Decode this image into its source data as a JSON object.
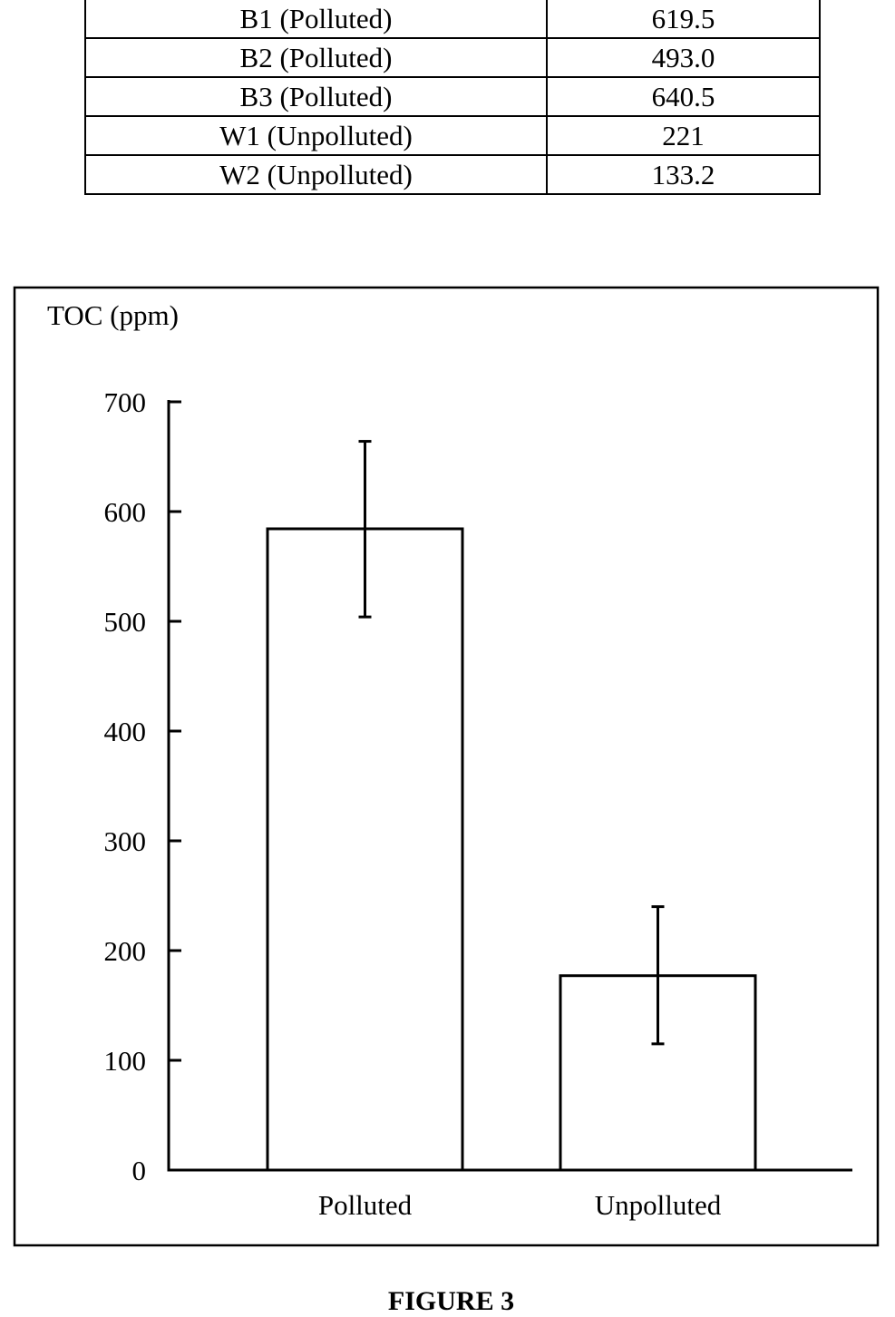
{
  "table": {
    "rows": [
      {
        "sample": "B1 (Polluted)",
        "toc": "619.5"
      },
      {
        "sample": "B2 (Polluted)",
        "toc": "493.0"
      },
      {
        "sample": "B3 (Polluted)",
        "toc": "640.5"
      },
      {
        "sample": "W1 (Unpolluted)",
        "toc": "221"
      },
      {
        "sample": "W2 (Unpolluted)",
        "toc": "133.2"
      }
    ]
  },
  "chart_data": {
    "type": "bar",
    "title": "",
    "xlabel": "",
    "ylabel": "TOC (ppm)",
    "categories": [
      "Polluted",
      "Unpolluted"
    ],
    "values": [
      584.3,
      177.1
    ],
    "error_low": [
      504,
      115
    ],
    "error_high": [
      664,
      240
    ],
    "ylim": [
      0,
      700
    ],
    "yticks": [
      0,
      100,
      200,
      300,
      400,
      500,
      600,
      700
    ],
    "grid": false,
    "legend": "none"
  },
  "caption": "FIGURE 3"
}
